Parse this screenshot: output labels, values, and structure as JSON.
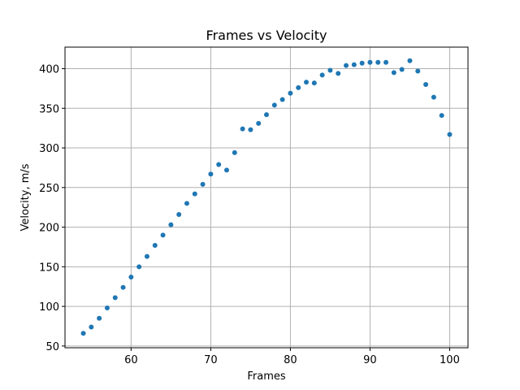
{
  "chart_data": {
    "type": "scatter",
    "title": "Frames vs Velocity",
    "xlabel": "Frames",
    "ylabel": "Velocity, m/s",
    "xlim": [
      51.7,
      102.3
    ],
    "ylim": [
      47.8,
      427.2
    ],
    "xticks": [
      60,
      70,
      80,
      90,
      100
    ],
    "yticks": [
      50,
      100,
      150,
      200,
      250,
      300,
      350,
      400
    ],
    "grid": true,
    "color": "#1f77b4",
    "series": [
      {
        "x": [
          54,
          55,
          56,
          57,
          58,
          59,
          60,
          61,
          62,
          63,
          64,
          65,
          66,
          67,
          68,
          69,
          70,
          71,
          72,
          73,
          74,
          75,
          76,
          77,
          78,
          79,
          80,
          81,
          82,
          83,
          84,
          85,
          86,
          87,
          88,
          89,
          90,
          91,
          92,
          93,
          94,
          95,
          96,
          97,
          98,
          99,
          100
        ],
        "y": [
          66,
          74,
          85,
          98,
          111,
          124,
          137,
          150,
          163,
          177,
          190,
          203,
          216,
          230,
          242,
          254,
          267,
          279,
          272,
          294,
          324,
          323,
          331,
          342,
          354,
          361,
          369,
          376,
          383,
          382,
          392,
          398,
          394,
          404,
          405,
          407,
          408,
          408,
          408,
          395,
          399,
          410,
          397,
          380,
          364,
          341,
          317
        ]
      }
    ]
  }
}
